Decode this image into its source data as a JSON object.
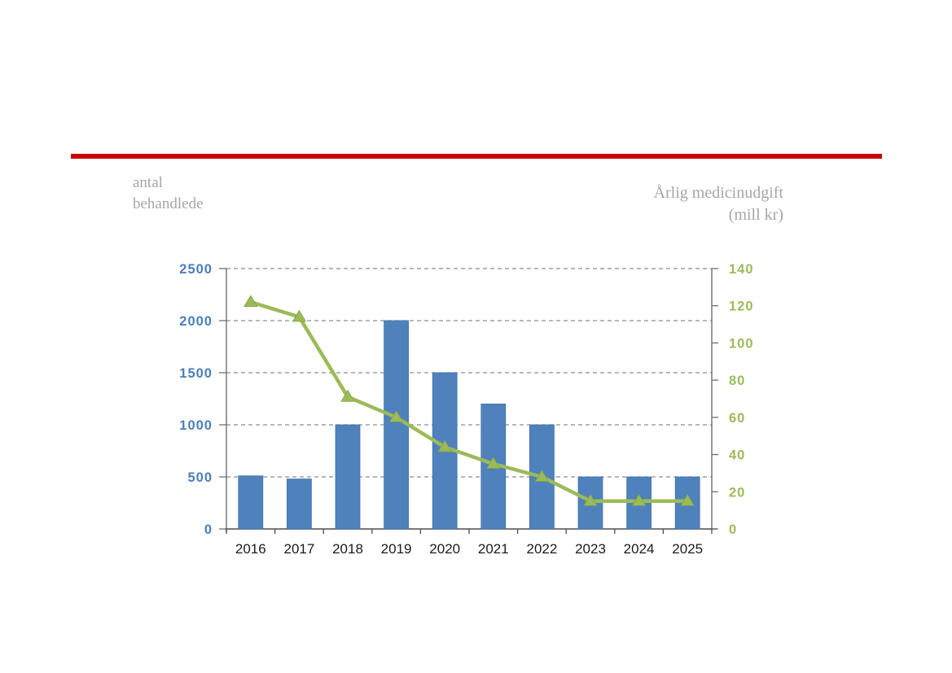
{
  "slide": {
    "background": "#ffffff",
    "divider_color": "#c80000"
  },
  "titles": {
    "left_line1": "antal",
    "left_line2": "behandlede",
    "right_line1": "Årlig medicinudgift",
    "right_line2": "(mill kr)"
  },
  "chart_data": {
    "type": "bar",
    "subtype": "combo-bar-line-dual-axis",
    "categories": [
      "2016",
      "2017",
      "2018",
      "2019",
      "2020",
      "2021",
      "2022",
      "2023",
      "2024",
      "2025"
    ],
    "series": [
      {
        "name": "antal behandlede",
        "type": "bar",
        "axis": "left",
        "color": "#4f81bd",
        "values": [
          510,
          480,
          1000,
          2000,
          1500,
          1200,
          1000,
          500,
          500,
          500
        ]
      },
      {
        "name": "Årlig medicinudgift (mill kr)",
        "type": "line",
        "axis": "right",
        "color": "#9bbb59",
        "marker": "triangle-up",
        "values": [
          122,
          114,
          71,
          60,
          44,
          35,
          28,
          15,
          15,
          15
        ]
      }
    ],
    "left_axis": {
      "label": "antal behandlede",
      "min": 0,
      "max": 2500,
      "step": 500,
      "tick_labels": [
        "0",
        "500",
        "1000",
        "1500",
        "2000",
        "2500"
      ],
      "text_color": "#4a7ebb"
    },
    "right_axis": {
      "label": "Årlig medicinudgift (mill kr)",
      "min": 0,
      "max": 140,
      "step": 20,
      "tick_labels": [
        "0",
        "20",
        "40",
        "60",
        "80",
        "100",
        "120",
        "140"
      ],
      "text_color": "#9bbb59"
    },
    "x_axis": {
      "text_color": "#1a1a1a"
    },
    "grid": {
      "style": "dashed",
      "orientation": "horizontal",
      "color": "#8c8c8c"
    },
    "legend": "none"
  }
}
